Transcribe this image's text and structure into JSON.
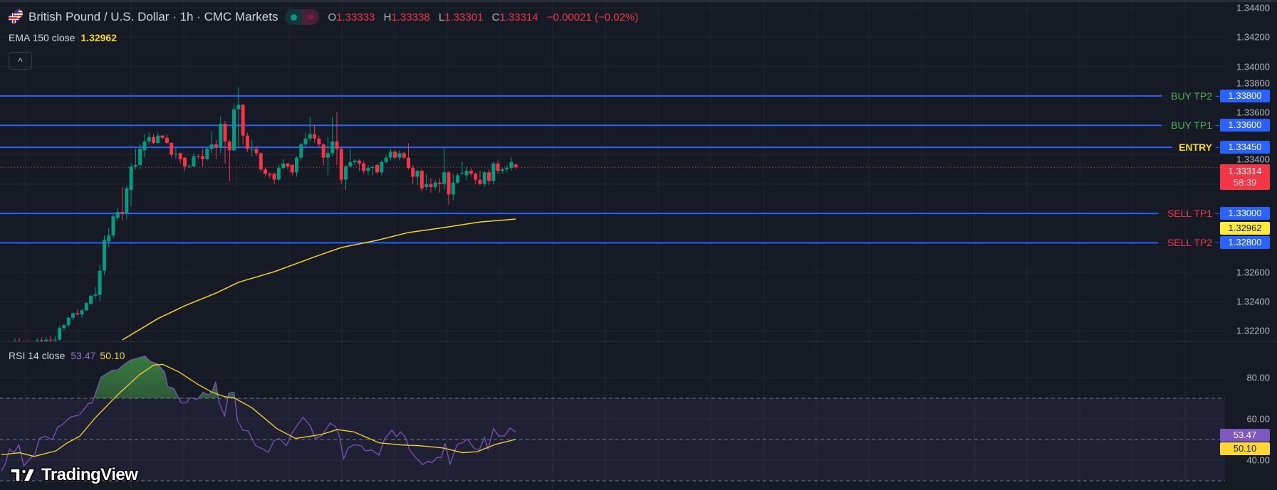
{
  "header": {
    "symbol_title": "British Pound / U.S. Dollar · 1h · CMC Markets",
    "ohlc": {
      "o_label": "O",
      "o": "1.33333",
      "h_label": "H",
      "h": "1.33338",
      "l_label": "L",
      "l": "1.33301",
      "c_label": "C",
      "c": "1.33314",
      "change": "−0.00021 (−0.02%)"
    },
    "status_icons": [
      "market-open-dot-icon",
      "forex-approx-icon"
    ],
    "fx_glyph": "≈",
    "collapse_glyph": "^"
  },
  "ema": {
    "label": "EMA 150 close",
    "value": "1.32962",
    "color": "#f7d42c"
  },
  "rsi": {
    "label": "RSI 14 close",
    "value": "53.47",
    "ma_value": "50.10",
    "line_color": "#7e57c2",
    "ma_color": "#f7d42c"
  },
  "price_axis": {
    "ticks": [
      "1.34400",
      "1.34200",
      "1.34000",
      "1.33800",
      "1.33600",
      "1.33400",
      "1.32600",
      "1.32400",
      "1.32200"
    ],
    "current_price": "1.33314",
    "countdown": "58:39",
    "ema_badge": "1.32962"
  },
  "rsi_axis": {
    "ticks": [
      "80.00",
      "60.00",
      "40.00"
    ],
    "rsi_badge": "53.47",
    "ma_badge": "50.10",
    "levels": [
      70,
      50,
      30
    ]
  },
  "levels": [
    {
      "label": "BUY TP2",
      "price": "1.33800",
      "label_color": "#4caf50"
    },
    {
      "label": "BUY TP1",
      "price": "1.33600",
      "label_color": "#4caf50"
    },
    {
      "label": "ENTRY",
      "price": "1.33450",
      "label_color": "#f7d42c"
    },
    {
      "label": "SELL TP1",
      "price": "1.33000",
      "label_color": "#f23645"
    },
    {
      "label": "SELL TP2",
      "price": "1.32800",
      "label_color": "#f23645"
    }
  ],
  "colors": {
    "up": "#089981",
    "down": "#f23645",
    "level_line": "#2962ff",
    "background": "#161a25"
  },
  "watermark": "TradingView",
  "chart_data": {
    "type": "candlestick",
    "interval": "1h",
    "y_range": [
      1.3208,
      1.3446
    ],
    "candles_ohlc": [
      [
        1.3212,
        1.32128,
        1.32105,
        1.32118
      ],
      [
        1.32118,
        1.32125,
        1.321,
        1.3211
      ],
      [
        1.3211,
        1.3213,
        1.32102,
        1.32125
      ],
      [
        1.32125,
        1.3215,
        1.32115,
        1.3213
      ],
      [
        1.3213,
        1.32152,
        1.3212,
        1.32122
      ],
      [
        1.32122,
        1.32135,
        1.32108,
        1.32128
      ],
      [
        1.32128,
        1.3214,
        1.32112,
        1.32118
      ],
      [
        1.32118,
        1.3213,
        1.321,
        1.32125
      ],
      [
        1.32125,
        1.3215,
        1.32118,
        1.32135
      ],
      [
        1.32135,
        1.32155,
        1.32122,
        1.32128
      ],
      [
        1.32128,
        1.3216,
        1.3212,
        1.3214
      ],
      [
        1.3214,
        1.3217,
        1.32128,
        1.32136
      ],
      [
        1.32136,
        1.32165,
        1.32125,
        1.3214
      ],
      [
        1.3214,
        1.32235,
        1.32135,
        1.3222
      ],
      [
        1.3222,
        1.3225,
        1.32205,
        1.3224
      ],
      [
        1.3224,
        1.32295,
        1.32225,
        1.3229
      ],
      [
        1.3229,
        1.32325,
        1.3227,
        1.3232
      ],
      [
        1.3232,
        1.32345,
        1.32305,
        1.32312
      ],
      [
        1.32312,
        1.3235,
        1.3229,
        1.3234
      ],
      [
        1.3234,
        1.32395,
        1.32335,
        1.3239
      ],
      [
        1.32385,
        1.32445,
        1.32378,
        1.3244
      ],
      [
        1.3244,
        1.325,
        1.3242,
        1.3245
      ],
      [
        1.32445,
        1.3265,
        1.32405,
        1.3261
      ],
      [
        1.3261,
        1.3285,
        1.3258,
        1.3282
      ],
      [
        1.3281,
        1.329,
        1.3277,
        1.3285
      ],
      [
        1.3285,
        1.33,
        1.3283,
        1.3298
      ],
      [
        1.3297,
        1.3304,
        1.3295,
        1.3301
      ],
      [
        1.3301,
        1.3318,
        1.3295,
        1.33
      ],
      [
        1.33,
        1.3319,
        1.3296,
        1.3317
      ],
      [
        1.3316,
        1.3334,
        1.3305,
        1.3332
      ],
      [
        1.3332,
        1.3344,
        1.333,
        1.3333
      ],
      [
        1.3333,
        1.3347,
        1.333,
        1.3344
      ],
      [
        1.3343,
        1.3354,
        1.3338,
        1.3349
      ],
      [
        1.3349,
        1.3355,
        1.3347,
        1.3352
      ],
      [
        1.3352,
        1.3354,
        1.3347,
        1.3348
      ],
      [
        1.3348,
        1.3355,
        1.33475,
        1.3353
      ],
      [
        1.3353,
        1.33535,
        1.33505,
        1.33515
      ],
      [
        1.33515,
        1.3354,
        1.3347,
        1.3348
      ],
      [
        1.3348,
        1.33485,
        1.3338,
        1.334
      ],
      [
        1.334,
        1.3345,
        1.3337,
        1.33405
      ],
      [
        1.3341,
        1.33415,
        1.3334,
        1.3337
      ],
      [
        1.3338,
        1.33385,
        1.3329,
        1.3332
      ],
      [
        1.3332,
        1.3333,
        1.3331,
        1.33325
      ],
      [
        1.3332,
        1.3341,
        1.33315,
        1.3339
      ],
      [
        1.3339,
        1.334,
        1.3337,
        1.33385
      ],
      [
        1.3339,
        1.3344,
        1.3332,
        1.3337
      ],
      [
        1.3337,
        1.3345,
        1.3336,
        1.3344
      ],
      [
        1.3344,
        1.3356,
        1.3341,
        1.3347
      ],
      [
        1.3347,
        1.335,
        1.3337,
        1.3345
      ],
      [
        1.3345,
        1.3366,
        1.3341,
        1.3361
      ],
      [
        1.3361,
        1.3363,
        1.3334,
        1.3349
      ],
      [
        1.3349,
        1.335,
        1.3322,
        1.3343
      ],
      [
        1.3343,
        1.3375,
        1.3342,
        1.3371
      ],
      [
        1.3371,
        1.3386,
        1.3344,
        1.3374
      ],
      [
        1.3374,
        1.33745,
        1.3347,
        1.3353
      ],
      [
        1.3353,
        1.3355,
        1.3342,
        1.3344
      ],
      [
        1.3344,
        1.335,
        1.3339,
        1.3344
      ],
      [
        1.3344,
        1.3346,
        1.3339,
        1.3341
      ],
      [
        1.3341,
        1.33415,
        1.3328,
        1.333
      ],
      [
        1.333,
        1.3331,
        1.3325,
        1.3327
      ],
      [
        1.3327,
        1.3328,
        1.3324,
        1.3326
      ],
      [
        1.3327,
        1.3328,
        1.332,
        1.3323
      ],
      [
        1.3323,
        1.3333,
        1.3322,
        1.3331
      ],
      [
        1.3331,
        1.3337,
        1.333,
        1.3334
      ],
      [
        1.3334,
        1.33345,
        1.333,
        1.3332
      ],
      [
        1.3333,
        1.33335,
        1.3326,
        1.3328
      ],
      [
        1.3328,
        1.3339,
        1.3325,
        1.3338
      ],
      [
        1.3338,
        1.3348,
        1.3336,
        1.3347
      ],
      [
        1.3347,
        1.3355,
        1.3346,
        1.3351
      ],
      [
        1.3351,
        1.3366,
        1.3349,
        1.3354
      ],
      [
        1.3354,
        1.336,
        1.3348,
        1.3351
      ],
      [
        1.3351,
        1.3353,
        1.3345,
        1.3347
      ],
      [
        1.3347,
        1.3348,
        1.3333,
        1.3338
      ],
      [
        1.3338,
        1.3352,
        1.3326,
        1.3341
      ],
      [
        1.3341,
        1.3366,
        1.3339,
        1.3349
      ],
      [
        1.3349,
        1.3369,
        1.3333,
        1.3344
      ],
      [
        1.3344,
        1.3345,
        1.332,
        1.3323
      ],
      [
        1.3323,
        1.3333,
        1.3316,
        1.3332
      ],
      [
        1.3332,
        1.3344,
        1.3331,
        1.3335
      ],
      [
        1.3335,
        1.3337,
        1.3333,
        1.3336
      ],
      [
        1.3336,
        1.3337,
        1.3329,
        1.3334
      ],
      [
        1.3334,
        1.3336,
        1.3327,
        1.3329
      ],
      [
        1.3329,
        1.3333,
        1.3326,
        1.3331
      ],
      [
        1.3331,
        1.3333,
        1.3326,
        1.33315
      ],
      [
        1.3333,
        1.3334,
        1.3327,
        1.3328
      ],
      [
        1.3328,
        1.3336,
        1.3326,
        1.3335
      ],
      [
        1.3335,
        1.334,
        1.3334,
        1.3338
      ],
      [
        1.3338,
        1.3344,
        1.3336,
        1.3342
      ],
      [
        1.3342,
        1.3343,
        1.3337,
        1.3338
      ],
      [
        1.3338,
        1.3343,
        1.3336,
        1.3341
      ],
      [
        1.3341,
        1.3342,
        1.3337,
        1.3338
      ],
      [
        1.3338,
        1.3348,
        1.333,
        1.3331
      ],
      [
        1.3331,
        1.3333,
        1.332,
        1.3325
      ],
      [
        1.3325,
        1.333,
        1.3319,
        1.3329
      ],
      [
        1.3329,
        1.333,
        1.3315,
        1.3317
      ],
      [
        1.3318,
        1.3327,
        1.3316,
        1.332
      ],
      [
        1.332,
        1.3324,
        1.3314,
        1.3318
      ],
      [
        1.3318,
        1.3323,
        1.3316,
        1.3321
      ],
      [
        1.3321,
        1.3324,
        1.3314,
        1.332
      ],
      [
        1.332,
        1.3345,
        1.3316,
        1.3328
      ],
      [
        1.3328,
        1.3329,
        1.3306,
        1.3313
      ],
      [
        1.3313,
        1.3327,
        1.3309,
        1.3321
      ],
      [
        1.3321,
        1.33275,
        1.332,
        1.3326
      ],
      [
        1.3327,
        1.3335,
        1.3326,
        1.33275
      ],
      [
        1.3326,
        1.3332,
        1.3323,
        1.3329
      ],
      [
        1.3329,
        1.3331,
        1.3325,
        1.3327
      ],
      [
        1.3327,
        1.3328,
        1.332,
        1.3323
      ],
      [
        1.3323,
        1.3329,
        1.3319,
        1.332
      ],
      [
        1.332,
        1.3329,
        1.3318,
        1.3328
      ],
      [
        1.3328,
        1.333,
        1.3319,
        1.3322
      ],
      [
        1.3322,
        1.3335,
        1.332,
        1.3334
      ],
      [
        1.3334,
        1.3336,
        1.3327,
        1.3329
      ],
      [
        1.3329,
        1.3331,
        1.3327,
        1.333
      ],
      [
        1.333,
        1.3333,
        1.3328,
        1.3331
      ],
      [
        1.3331,
        1.3338,
        1.3329,
        1.3335
      ],
      [
        1.33333,
        1.33338,
        1.33301,
        1.33314
      ]
    ],
    "ema150": [
      [
        27,
        1.32138
      ],
      [
        35,
        1.32284
      ],
      [
        41,
        1.32371
      ],
      [
        48,
        1.32458
      ],
      [
        53,
        1.32531
      ],
      [
        61,
        1.32603
      ],
      [
        71,
        1.32715
      ],
      [
        76,
        1.32768
      ],
      [
        84,
        1.32817
      ],
      [
        91,
        1.3287
      ],
      [
        99,
        1.32904
      ],
      [
        107,
        1.32942
      ],
      [
        115,
        1.32962
      ]
    ],
    "rsi14": [
      [
        0,
        34.9
      ],
      [
        0.8,
        37.8
      ],
      [
        1.8,
        45.3
      ],
      [
        2.8,
        43.6
      ],
      [
        3.9,
        47.4
      ],
      [
        5.0,
        37.2
      ],
      [
        6.1,
        40.1
      ],
      [
        7.5,
        43.0
      ],
      [
        8.5,
        50.5
      ],
      [
        9.7,
        51.6
      ],
      [
        11.4,
        49.9
      ],
      [
        12.6,
        56.2
      ],
      [
        13.4,
        56.8
      ],
      [
        15.4,
        60.8
      ],
      [
        17.5,
        62.0
      ],
      [
        19.5,
        67.5
      ],
      [
        20.3,
        67.7
      ],
      [
        21.1,
        72.9
      ],
      [
        22.3,
        80.3
      ],
      [
        24.8,
        83.6
      ],
      [
        26.0,
        83.8
      ],
      [
        27.2,
        86.1
      ],
      [
        28.8,
        88.4
      ],
      [
        30.5,
        89.5
      ],
      [
        32.1,
        90.5
      ],
      [
        33.3,
        87.8
      ],
      [
        34.9,
        86.7
      ],
      [
        36.5,
        82.6
      ],
      [
        37.2,
        75.7
      ],
      [
        38.6,
        74.6
      ],
      [
        40.2,
        67.7
      ],
      [
        41.4,
        67.9
      ],
      [
        42.2,
        70.3
      ],
      [
        43.8,
        69.4
      ],
      [
        45.1,
        72.9
      ],
      [
        46.3,
        71.7
      ],
      [
        47.1,
        73.4
      ],
      [
        47.9,
        77.8
      ],
      [
        48.7,
        67.7
      ],
      [
        49.9,
        61.4
      ],
      [
        50.8,
        72.5
      ],
      [
        52.0,
        72.9
      ],
      [
        52.8,
        59.1
      ],
      [
        54.0,
        54.5
      ],
      [
        55.2,
        54.1
      ],
      [
        56.8,
        47.0
      ],
      [
        58.5,
        45.3
      ],
      [
        59.7,
        43.8
      ],
      [
        60.9,
        49.3
      ],
      [
        62.1,
        50.5
      ],
      [
        63.7,
        47.0
      ],
      [
        65.0,
        53.3
      ],
      [
        67.4,
        60.8
      ],
      [
        69.0,
        56.8
      ],
      [
        70.2,
        50.5
      ],
      [
        71.5,
        51.6
      ],
      [
        73.5,
        57.9
      ],
      [
        74.7,
        56.2
      ],
      [
        75.5,
        52.2
      ],
      [
        76.5,
        40.7
      ],
      [
        77.5,
        45.9
      ],
      [
        78.8,
        47.4
      ],
      [
        80.4,
        47.0
      ],
      [
        81.4,
        44.5
      ],
      [
        82.8,
        44.9
      ],
      [
        84.4,
        42.4
      ],
      [
        85.7,
        50.5
      ],
      [
        87.3,
        54.5
      ],
      [
        88.3,
        51.4
      ],
      [
        89.3,
        53.7
      ],
      [
        90.3,
        51.0
      ],
      [
        91.3,
        44.7
      ],
      [
        92.6,
        41.3
      ],
      [
        94.2,
        37.8
      ],
      [
        95.4,
        39.5
      ],
      [
        96.2,
        38.7
      ],
      [
        97.4,
        41.3
      ],
      [
        98.4,
        41.3
      ],
      [
        99.2,
        48.2
      ],
      [
        100.3,
        38.0
      ],
      [
        101.9,
        47.6
      ],
      [
        103.1,
        48.4
      ],
      [
        104.2,
        50.2
      ],
      [
        105.6,
        45.9
      ],
      [
        106.8,
        44.7
      ],
      [
        108.0,
        51.0
      ],
      [
        108.8,
        45.3
      ],
      [
        110.0,
        55.3
      ],
      [
        111.2,
        51.6
      ],
      [
        112.5,
        51.8
      ],
      [
        113.7,
        55.6
      ],
      [
        115,
        53.47
      ]
    ],
    "rsi_ma": [
      [
        0,
        42.6
      ],
      [
        4.1,
        43.6
      ],
      [
        7.3,
        41.8
      ],
      [
        12.2,
        44.5
      ],
      [
        14.6,
        48.2
      ],
      [
        17.5,
        51.6
      ],
      [
        21.1,
        60.8
      ],
      [
        26.0,
        71.7
      ],
      [
        30.9,
        81.5
      ],
      [
        34.1,
        86.1
      ],
      [
        36.1,
        86.4
      ],
      [
        39.8,
        82.6
      ],
      [
        43.8,
        76.9
      ],
      [
        47.1,
        72.9
      ],
      [
        49.9,
        70.8
      ],
      [
        52.0,
        70.2
      ],
      [
        56.0,
        65.4
      ],
      [
        61.7,
        55.1
      ],
      [
        65.8,
        50.5
      ],
      [
        71.5,
        52.4
      ],
      [
        75.1,
        54.8
      ],
      [
        78.8,
        53.7
      ],
      [
        84.4,
        48.4
      ],
      [
        89.3,
        47.4
      ],
      [
        93.4,
        47.0
      ],
      [
        98.7,
        45.9
      ],
      [
        103.1,
        43.6
      ],
      [
        106.4,
        44.1
      ],
      [
        110.4,
        47.6
      ],
      [
        115,
        50.1
      ]
    ],
    "rsi_range": [
      20,
      100
    ]
  }
}
